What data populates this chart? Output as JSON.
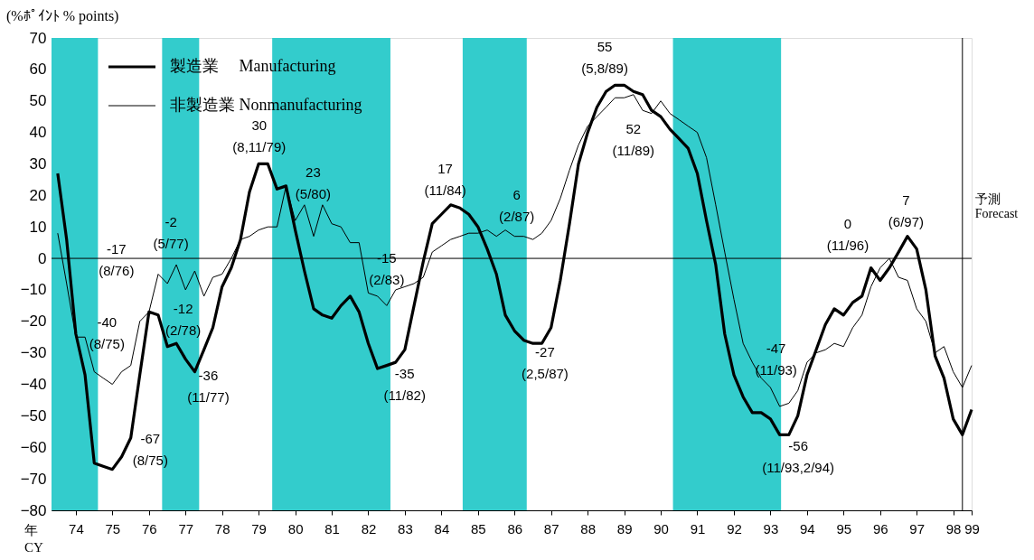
{
  "chart_data": {
    "type": "line",
    "ylabel": "(%ﾎﾟｲﾝﾄ  % points)",
    "xlabel": "年 CY",
    "x": [
      "1974-02",
      "1974-05",
      "1974-08",
      "1974-11",
      "1975-02",
      "1975-05",
      "1975-08",
      "1975-11",
      "1976-02",
      "1976-05",
      "1976-08",
      "1976-11",
      "1977-02",
      "1977-05",
      "1977-08",
      "1977-11",
      "1978-02",
      "1978-05",
      "1978-08",
      "1978-11",
      "1979-02",
      "1979-05",
      "1979-08",
      "1979-11",
      "1980-02",
      "1980-05",
      "1980-08",
      "1980-11",
      "1981-02",
      "1981-05",
      "1981-08",
      "1981-11",
      "1982-02",
      "1982-05",
      "1982-08",
      "1982-11",
      "1983-02",
      "1983-05",
      "1983-08",
      "1983-11",
      "1984-02",
      "1984-05",
      "1984-08",
      "1984-11",
      "1985-02",
      "1985-05",
      "1985-08",
      "1985-11",
      "1986-02",
      "1986-05",
      "1986-08",
      "1986-11",
      "1987-02",
      "1987-05",
      "1987-08",
      "1987-11",
      "1988-02",
      "1988-05",
      "1988-08",
      "1988-11",
      "1989-02",
      "1989-05",
      "1989-08",
      "1989-11",
      "1990-02",
      "1990-05",
      "1990-08",
      "1990-11",
      "1991-02",
      "1991-05",
      "1991-08",
      "1991-11",
      "1992-02",
      "1992-05",
      "1992-08",
      "1992-11",
      "1993-02",
      "1993-05",
      "1993-08",
      "1993-11",
      "1994-02",
      "1994-05",
      "1994-08",
      "1994-11",
      "1995-02",
      "1995-05",
      "1995-08",
      "1995-11",
      "1996-02",
      "1996-05",
      "1996-08",
      "1996-11",
      "1997-02",
      "1997-05",
      "1997-08",
      "1997-11",
      "1998-02",
      "1998-05",
      "1998-08",
      "1998-11",
      "1999-02"
    ],
    "series": [
      {
        "name": "製造業　 Manufacturing",
        "color": "#000000",
        "values": [
          27,
          6,
          -24,
          -37,
          -65,
          -66,
          -67,
          -63,
          -57,
          -37,
          -17,
          -18,
          -28,
          -27,
          -32,
          -36,
          -29,
          -22,
          -9,
          -3,
          6,
          21,
          30,
          30,
          22,
          23,
          9,
          -4,
          -16,
          -18,
          -19,
          -15,
          -12,
          -17,
          -27,
          -35,
          -34,
          -33,
          -29,
          -15,
          -1,
          11,
          14,
          17,
          16,
          14,
          10,
          3,
          -5,
          -18,
          -23,
          -26,
          -27,
          -27,
          -22,
          -7,
          11,
          30,
          40,
          48,
          53,
          55,
          55,
          53,
          52,
          47,
          45,
          41,
          38,
          35,
          27,
          12,
          -2,
          -24,
          -37,
          -44,
          -49,
          -49,
          -51,
          -56,
          -56,
          -50,
          -37,
          -29,
          -21,
          -16,
          -18,
          -14,
          -12,
          -3,
          -7,
          -3,
          2,
          7,
          3,
          -10,
          -31,
          -38,
          -51,
          -56,
          -48
        ]
      },
      {
        "name": "非製造業 Nonmanufacturing",
        "color": "#000000",
        "values": [
          8,
          -8,
          -25,
          -25,
          -36,
          -38,
          -40,
          -36,
          -34,
          -20,
          -17,
          -5,
          -8,
          -2,
          -10,
          -4,
          -12,
          -6,
          -5,
          0,
          6,
          7,
          9,
          10,
          10,
          23,
          12,
          17,
          7,
          17,
          11,
          10,
          5,
          5,
          -11,
          -12,
          -15,
          -10,
          -9,
          -8,
          -6,
          2,
          4,
          6,
          7,
          8,
          8,
          9,
          7,
          9,
          7,
          7,
          6,
          8,
          12,
          19,
          28,
          36,
          42,
          45,
          48,
          51,
          51,
          52,
          47,
          46,
          50,
          46,
          44,
          42,
          40,
          32,
          17,
          2,
          -13,
          -27,
          -33,
          -38,
          -41,
          -47,
          -46,
          -42,
          -33,
          -30,
          -29,
          -27,
          -28,
          -22,
          -18,
          -9,
          -3,
          0,
          -6,
          -7,
          -16,
          -20,
          -30,
          -28,
          -36,
          -41,
          -34
        ]
      }
    ],
    "xlim": [
      "1973-12-01",
      "1999-02-01"
    ],
    "xticks": [
      {
        "value": "1974-08-01",
        "label": "74"
      },
      {
        "value": "1975-08-01",
        "label": "75"
      },
      {
        "value": "1976-08-01",
        "label": "76"
      },
      {
        "value": "1977-08-01",
        "label": "77"
      },
      {
        "value": "1978-08-01",
        "label": "78"
      },
      {
        "value": "1979-08-01",
        "label": "79"
      },
      {
        "value": "1980-08-01",
        "label": "80"
      },
      {
        "value": "1981-08-01",
        "label": "81"
      },
      {
        "value": "1982-08-01",
        "label": "82"
      },
      {
        "value": "1983-08-01",
        "label": "83"
      },
      {
        "value": "1984-08-01",
        "label": "84"
      },
      {
        "value": "1985-08-01",
        "label": "85"
      },
      {
        "value": "1986-08-01",
        "label": "86"
      },
      {
        "value": "1987-08-01",
        "label": "87"
      },
      {
        "value": "1988-08-01",
        "label": "88"
      },
      {
        "value": "1989-08-01",
        "label": "89"
      },
      {
        "value": "1990-08-01",
        "label": "90"
      },
      {
        "value": "1991-08-01",
        "label": "91"
      },
      {
        "value": "1992-08-01",
        "label": "92"
      },
      {
        "value": "1993-08-01",
        "label": "93"
      },
      {
        "value": "1994-08-01",
        "label": "94"
      },
      {
        "value": "1995-08-01",
        "label": "95"
      },
      {
        "value": "1996-08-01",
        "label": "96"
      },
      {
        "value": "1997-08-01",
        "label": "97"
      },
      {
        "value": "1998-08-01",
        "label": "98"
      },
      {
        "value": "1999-02-01",
        "label": "99"
      }
    ],
    "ylim": [
      -80,
      70
    ],
    "yticks": [
      -80,
      -70,
      -60,
      -50,
      -40,
      -30,
      -20,
      -10,
      0,
      10,
      20,
      30,
      40,
      50,
      60,
      70
    ],
    "bands": [
      {
        "axis": "x",
        "from": "1973-12-01",
        "to": "1975-03-10",
        "color": "#33cccc"
      },
      {
        "axis": "x",
        "from": "1976-12-10",
        "to": "1977-12-15",
        "color": "#33cccc"
      },
      {
        "axis": "x",
        "from": "1979-12-15",
        "to": "1983-03-10",
        "color": "#33cccc"
      },
      {
        "axis": "x",
        "from": "1985-03-01",
        "to": "1986-12-01",
        "color": "#33cccc"
      },
      {
        "axis": "x",
        "from": "1990-12-01",
        "to": "1993-11-15",
        "color": "#33cccc"
      }
    ],
    "ref_lines": [
      {
        "axis": "y",
        "value": 0,
        "color": "#000000"
      },
      {
        "axis": "x",
        "value": "1998-11",
        "label": "予測 Forecast",
        "color": "#000000"
      }
    ],
    "annotations": [
      {
        "text": "-67 (8/75)",
        "x": "1975-08",
        "y": -67
      },
      {
        "text": "-40 (8/75)",
        "x": "1975-08",
        "y": -40
      },
      {
        "text": "-17 (8/76)",
        "x": "1976-08",
        "y": -17
      },
      {
        "text": "-2 (5/77)",
        "x": "1977-05",
        "y": -2
      },
      {
        "text": "-12 (2/78)",
        "x": "1978-02",
        "y": -12
      },
      {
        "text": "-36 (11/77)",
        "x": "1977-11",
        "y": -36
      },
      {
        "text": "30 (8,11/79)",
        "x": "1979-09-30",
        "y": 30
      },
      {
        "text": "23 (5/80)",
        "x": "1980-05",
        "y": 23
      },
      {
        "text": "-15 (2/83)",
        "x": "1983-02",
        "y": -15
      },
      {
        "text": "-35 (11/82)",
        "x": "1982-11",
        "y": -35
      },
      {
        "text": "17 (11/84)",
        "x": "1984-11",
        "y": 17
      },
      {
        "text": "6 (2/87)",
        "x": "1987-02",
        "y": 6
      },
      {
        "text": "-27 (2,5/87)",
        "x": "1987-03-30",
        "y": -27
      },
      {
        "text": "55 (5,8/89)",
        "x": "1989-06-30",
        "y": 55
      },
      {
        "text": "52 (11/89)",
        "x": "1989-11",
        "y": 52
      },
      {
        "text": "-47 (11/93)",
        "x": "1993-11",
        "y": -47
      },
      {
        "text": "-56 (11/93,2/94)",
        "x": "1993-12-30",
        "y": -56
      },
      {
        "text": "0 (11/96)",
        "x": "1996-11",
        "y": 0
      },
      {
        "text": "7 (6/97)",
        "x": "1997-06",
        "y": 7
      }
    ],
    "grid": false,
    "legend": "top left",
    "marker": "none",
    "line_style": "solid"
  }
}
